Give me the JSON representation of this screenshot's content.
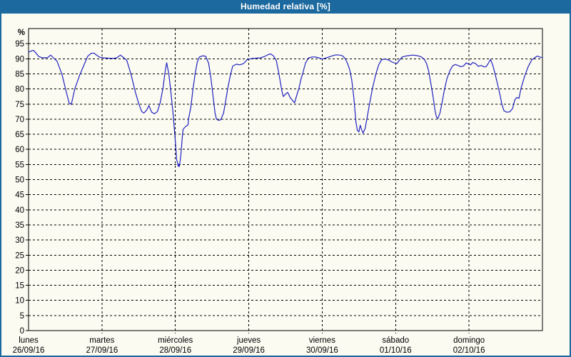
{
  "header": {
    "title": "Humedad relativa [%]"
  },
  "colors": {
    "titlebar_bg": "#1b699e",
    "frame_border": "#1b699e",
    "page_bg": "#fbfbf2",
    "grid": "#000000",
    "axis_text": "#000000",
    "series_line": "#2222c0"
  },
  "chart_data": {
    "type": "line",
    "title": "Humedad relativa [%]",
    "ylabel": "%",
    "unit_label": "%",
    "ylim": [
      0,
      100
    ],
    "yticks": [
      0,
      5,
      10,
      15,
      20,
      25,
      30,
      35,
      40,
      45,
      50,
      55,
      60,
      65,
      70,
      75,
      80,
      85,
      90,
      95
    ],
    "grid": "dashed",
    "legend_position": "none",
    "x_span_days": 7,
    "x_unit": "days since 26/09/16 00:00",
    "categories": [
      {
        "name": "lunes",
        "date": "26/09/16"
      },
      {
        "name": "martes",
        "date": "27/09/16"
      },
      {
        "name": "miércoles",
        "date": "28/09/16"
      },
      {
        "name": "jueves",
        "date": "29/09/16"
      },
      {
        "name": "viernes",
        "date": "30/09/16"
      },
      {
        "name": "sábado",
        "date": "01/10/16"
      },
      {
        "name": "domingo",
        "date": "02/10/16"
      }
    ],
    "line_color": "#2222c0",
    "series": [
      {
        "name": "Humedad relativa",
        "points": [
          [
            0.0,
            92.2
          ],
          [
            0.039,
            92.6
          ],
          [
            0.068,
            92.8
          ],
          [
            0.097,
            92.0
          ],
          [
            0.136,
            90.8
          ],
          [
            0.175,
            90.4
          ],
          [
            0.213,
            90.3
          ],
          [
            0.262,
            90.4
          ],
          [
            0.301,
            91.2
          ],
          [
            0.339,
            90.3
          ],
          [
            0.388,
            89.2
          ],
          [
            0.456,
            84.8
          ],
          [
            0.504,
            80.0
          ],
          [
            0.552,
            75.4
          ],
          [
            0.582,
            74.9
          ],
          [
            0.63,
            80.0
          ],
          [
            0.698,
            84.7
          ],
          [
            0.756,
            88.0
          ],
          [
            0.805,
            90.8
          ],
          [
            0.853,
            91.8
          ],
          [
            0.892,
            91.9
          ],
          [
            0.921,
            91.3
          ],
          [
            0.97,
            90.5
          ],
          [
            1.018,
            90.3
          ],
          [
            1.086,
            90.2
          ],
          [
            1.144,
            90.1
          ],
          [
            1.202,
            90.3
          ],
          [
            1.251,
            91.2
          ],
          [
            1.299,
            90.3
          ],
          [
            1.338,
            89.5
          ],
          [
            1.396,
            84.8
          ],
          [
            1.454,
            79.0
          ],
          [
            1.503,
            75.0
          ],
          [
            1.542,
            72.5
          ],
          [
            1.571,
            72.0
          ],
          [
            1.609,
            73.0
          ],
          [
            1.639,
            74.5
          ],
          [
            1.677,
            72.3
          ],
          [
            1.716,
            71.8
          ],
          [
            1.755,
            72.5
          ],
          [
            1.794,
            75.5
          ],
          [
            1.833,
            80.5
          ],
          [
            1.862,
            86.0
          ],
          [
            1.881,
            88.7
          ],
          [
            1.91,
            85.0
          ],
          [
            1.939,
            79.0
          ],
          [
            1.968,
            72.0
          ],
          [
            1.997,
            63.5
          ],
          [
            2.01,
            59.4
          ],
          [
            2.017,
            56.6
          ],
          [
            2.03,
            55.5
          ],
          [
            2.039,
            54.4
          ],
          [
            2.046,
            55.1
          ],
          [
            2.053,
            54.3
          ],
          [
            2.065,
            56.2
          ],
          [
            2.075,
            58.2
          ],
          [
            2.085,
            61.4
          ],
          [
            2.094,
            64.0
          ],
          [
            2.104,
            66.5
          ],
          [
            2.124,
            67.2
          ],
          [
            2.153,
            67.8
          ],
          [
            2.172,
            68.1
          ],
          [
            2.182,
            70.4
          ],
          [
            2.211,
            74.0
          ],
          [
            2.24,
            80.0
          ],
          [
            2.269,
            85.0
          ],
          [
            2.298,
            88.9
          ],
          [
            2.327,
            90.6
          ],
          [
            2.375,
            91.0
          ],
          [
            2.414,
            90.8
          ],
          [
            2.453,
            88.5
          ],
          [
            2.482,
            84.0
          ],
          [
            2.511,
            78.0
          ],
          [
            2.54,
            72.0
          ],
          [
            2.56,
            70.0
          ],
          [
            2.589,
            69.6
          ],
          [
            2.618,
            69.8
          ],
          [
            2.656,
            72.0
          ],
          [
            2.685,
            76.0
          ],
          [
            2.715,
            80.5
          ],
          [
            2.753,
            85.0
          ],
          [
            2.782,
            87.6
          ],
          [
            2.831,
            88.2
          ],
          [
            2.879,
            88.0
          ],
          [
            2.928,
            88.4
          ],
          [
            2.976,
            89.7
          ],
          [
            3.044,
            90.1
          ],
          [
            3.103,
            90.2
          ],
          [
            3.161,
            90.3
          ],
          [
            3.219,
            90.8
          ],
          [
            3.267,
            91.4
          ],
          [
            3.296,
            91.6
          ],
          [
            3.335,
            91.0
          ],
          [
            3.374,
            89.5
          ],
          [
            3.403,
            86.0
          ],
          [
            3.432,
            82.0
          ],
          [
            3.452,
            79.1
          ],
          [
            3.471,
            77.5
          ],
          [
            3.5,
            78.3
          ],
          [
            3.529,
            78.9
          ],
          [
            3.568,
            77.0
          ],
          [
            3.623,
            75.4
          ],
          [
            3.655,
            78.0
          ],
          [
            3.684,
            80.3
          ],
          [
            3.713,
            83.4
          ],
          [
            3.733,
            85.0
          ],
          [
            3.771,
            88.5
          ],
          [
            3.81,
            90.2
          ],
          [
            3.859,
            90.6
          ],
          [
            3.907,
            90.6
          ],
          [
            3.956,
            90.3
          ],
          [
            3.995,
            89.9
          ],
          [
            4.043,
            90.2
          ],
          [
            4.092,
            90.6
          ],
          [
            4.14,
            91.0
          ],
          [
            4.189,
            91.3
          ],
          [
            4.237,
            91.2
          ],
          [
            4.276,
            91.0
          ],
          [
            4.315,
            90.0
          ],
          [
            4.344,
            88.5
          ],
          [
            4.373,
            86.5
          ],
          [
            4.402,
            83.0
          ],
          [
            4.431,
            77.0
          ],
          [
            4.46,
            69.0
          ],
          [
            4.479,
            66.3
          ],
          [
            4.499,
            65.8
          ],
          [
            4.518,
            68.0
          ],
          [
            4.537,
            66.5
          ],
          [
            4.557,
            65.4
          ],
          [
            4.586,
            67.0
          ],
          [
            4.615,
            71.0
          ],
          [
            4.644,
            75.0
          ],
          [
            4.683,
            80.0
          ],
          [
            4.731,
            85.0
          ],
          [
            4.77,
            88.0
          ],
          [
            4.809,
            89.7
          ],
          [
            4.857,
            89.9
          ],
          [
            4.906,
            89.6
          ],
          [
            4.944,
            89.0
          ],
          [
            4.983,
            88.6
          ],
          [
            5.022,
            88.5
          ],
          [
            5.051,
            89.5
          ],
          [
            5.09,
            90.6
          ],
          [
            5.158,
            91.0
          ],
          [
            5.235,
            91.2
          ],
          [
            5.303,
            91.0
          ],
          [
            5.352,
            90.6
          ],
          [
            5.39,
            89.8
          ],
          [
            5.42,
            88.5
          ],
          [
            5.449,
            86.0
          ],
          [
            5.478,
            82.0
          ],
          [
            5.507,
            78.0
          ],
          [
            5.536,
            73.0
          ],
          [
            5.555,
            70.8
          ],
          [
            5.575,
            70.2
          ],
          [
            5.604,
            72.0
          ],
          [
            5.633,
            75.5
          ],
          [
            5.662,
            79.5
          ],
          [
            5.7,
            83.5
          ],
          [
            5.739,
            86.0
          ],
          [
            5.778,
            87.7
          ],
          [
            5.817,
            88.1
          ],
          [
            5.856,
            87.7
          ],
          [
            5.885,
            87.4
          ],
          [
            5.924,
            87.6
          ],
          [
            5.962,
            88.6
          ],
          [
            5.991,
            88.3
          ],
          [
            6.021,
            88.0
          ],
          [
            6.05,
            88.8
          ],
          [
            6.088,
            88.4
          ],
          [
            6.127,
            87.5
          ],
          [
            6.166,
            87.8
          ],
          [
            6.205,
            87.3
          ],
          [
            6.234,
            87.4
          ],
          [
            6.263,
            88.5
          ],
          [
            6.292,
            89.8
          ],
          [
            6.321,
            88.0
          ],
          [
            6.35,
            85.5
          ],
          [
            6.38,
            82.5
          ],
          [
            6.418,
            78.5
          ],
          [
            6.447,
            75.0
          ],
          [
            6.476,
            72.8
          ],
          [
            6.515,
            72.3
          ],
          [
            6.554,
            72.4
          ],
          [
            6.593,
            73.5
          ],
          [
            6.622,
            76.3
          ],
          [
            6.651,
            77.2
          ],
          [
            6.68,
            76.9
          ],
          [
            6.709,
            80.3
          ],
          [
            6.757,
            84.2
          ],
          [
            6.806,
            87.4
          ],
          [
            6.854,
            89.6
          ],
          [
            6.903,
            90.5
          ],
          [
            6.932,
            90.9
          ],
          [
            6.971,
            90.5
          ],
          [
            7.0,
            90.4
          ]
        ]
      }
    ]
  }
}
